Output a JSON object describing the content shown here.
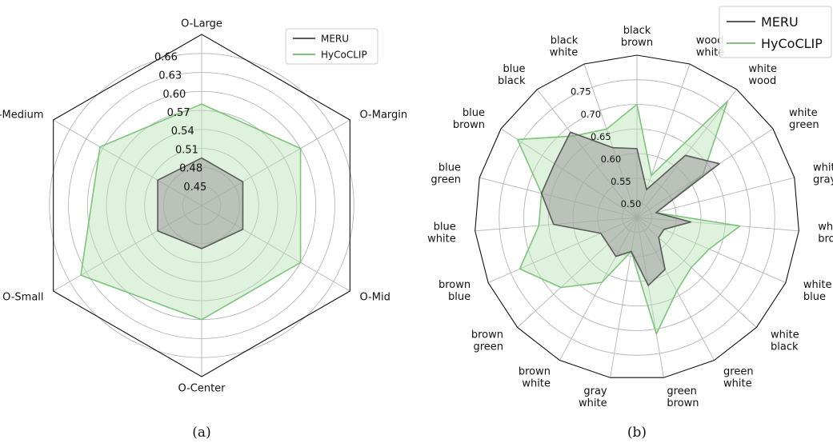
{
  "colors": {
    "meru": "#5a5a5a",
    "hycoclip": "#7cc57a",
    "hycoclip_fill": "#b9e3b4",
    "meru_fill": "#9a9a9a",
    "grid": "#b5b5b5",
    "frame": "#111111"
  },
  "chart_data": [
    {
      "type": "radar",
      "caption": "(a)",
      "categories": [
        "O-Large",
        "O-Margin",
        "O-Mid",
        "O-Center",
        "O-Small",
        "O-Medium"
      ],
      "rlim": [
        0.42,
        0.69
      ],
      "rticks": [
        0.45,
        0.48,
        0.51,
        0.54,
        0.57,
        0.6,
        0.63,
        0.66
      ],
      "rtick_labels": [
        "0.45",
        "0.48",
        "0.51",
        "0.54",
        "0.57",
        "0.60",
        "0.63",
        "0.66"
      ],
      "grid": true,
      "legend_position": "top-right",
      "series": [
        {
          "name": "MERU",
          "values": [
            0.495,
            0.495,
            0.495,
            0.488,
            0.5,
            0.5
          ]
        },
        {
          "name": "HyCoCLIP",
          "values": [
            0.58,
            0.6,
            0.6,
            0.6,
            0.64,
            0.605
          ]
        }
      ]
    },
    {
      "type": "radar",
      "caption": "(b)",
      "categories": [
        "black\nbrown",
        "wood\nwhite",
        "white\nwood",
        "white\ngreen",
        "white\ngray",
        "white\nbrown",
        "white\nblue",
        "white\nblack",
        "green\nwhite",
        "green\nbrown",
        "gray\nwhite",
        "brown\nwhite",
        "brown\ngreen",
        "brown\nblue",
        "blue\nwhite",
        "blue\ngreen",
        "blue\nbrown",
        "blue\nblack",
        "black\nwhite"
      ],
      "rlim": [
        0.47,
        0.8
      ],
      "rticks": [
        0.5,
        0.55,
        0.6,
        0.65,
        0.7,
        0.75
      ],
      "rtick_labels": [
        "0.50",
        "0.55",
        "0.60",
        "0.65",
        "0.70",
        "0.75"
      ],
      "grid": true,
      "legend_position": "top-right",
      "series": [
        {
          "name": "MERU",
          "values": [
            0.61,
            0.53,
            0.63,
            0.67,
            0.51,
            0.58,
            0.53,
            0.53,
            0.59,
            0.61,
            0.54,
            0.56,
            0.55,
            0.55,
            0.64,
            0.67,
            0.67,
            0.69,
            0.62
          ]
        },
        {
          "name": "HyCoCLIP",
          "values": [
            0.7,
            0.56,
            0.77,
            0.63,
            0.51,
            0.68,
            0.63,
            0.62,
            0.64,
            0.71,
            0.54,
            0.62,
            0.68,
            0.73,
            0.67,
            0.67,
            0.76,
            0.68,
            0.66
          ]
        }
      ]
    }
  ]
}
